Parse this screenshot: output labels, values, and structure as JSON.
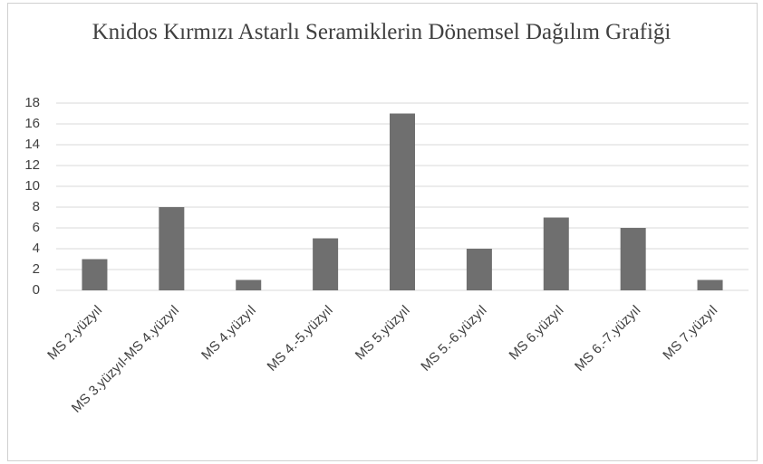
{
  "chart_data": {
    "type": "bar",
    "title": "Knidos Kırmızı Astarlı Seramiklerin Dönemsel Dağılım Grafiği",
    "categories": [
      "MS 2.yüzyıl",
      "MS 3.yüzyıl-MS 4.yüzyıl",
      "MS 4.yüzyıl",
      "MS 4.-5.yüzyıl",
      "MS 5.yüzyıl",
      "MS 5.-6.yüzyıl",
      "MS 6.yüzyıl",
      "MS 6.-7.yüzyıl",
      "MS 7.yüzyıl"
    ],
    "values": [
      3,
      8,
      1,
      5,
      17,
      4,
      7,
      6,
      1
    ],
    "color": "#6f6f6f",
    "ylim": [
      0,
      18
    ],
    "yticks": [
      0,
      2,
      4,
      6,
      8,
      10,
      12,
      14,
      16,
      18
    ],
    "grid": true
  }
}
